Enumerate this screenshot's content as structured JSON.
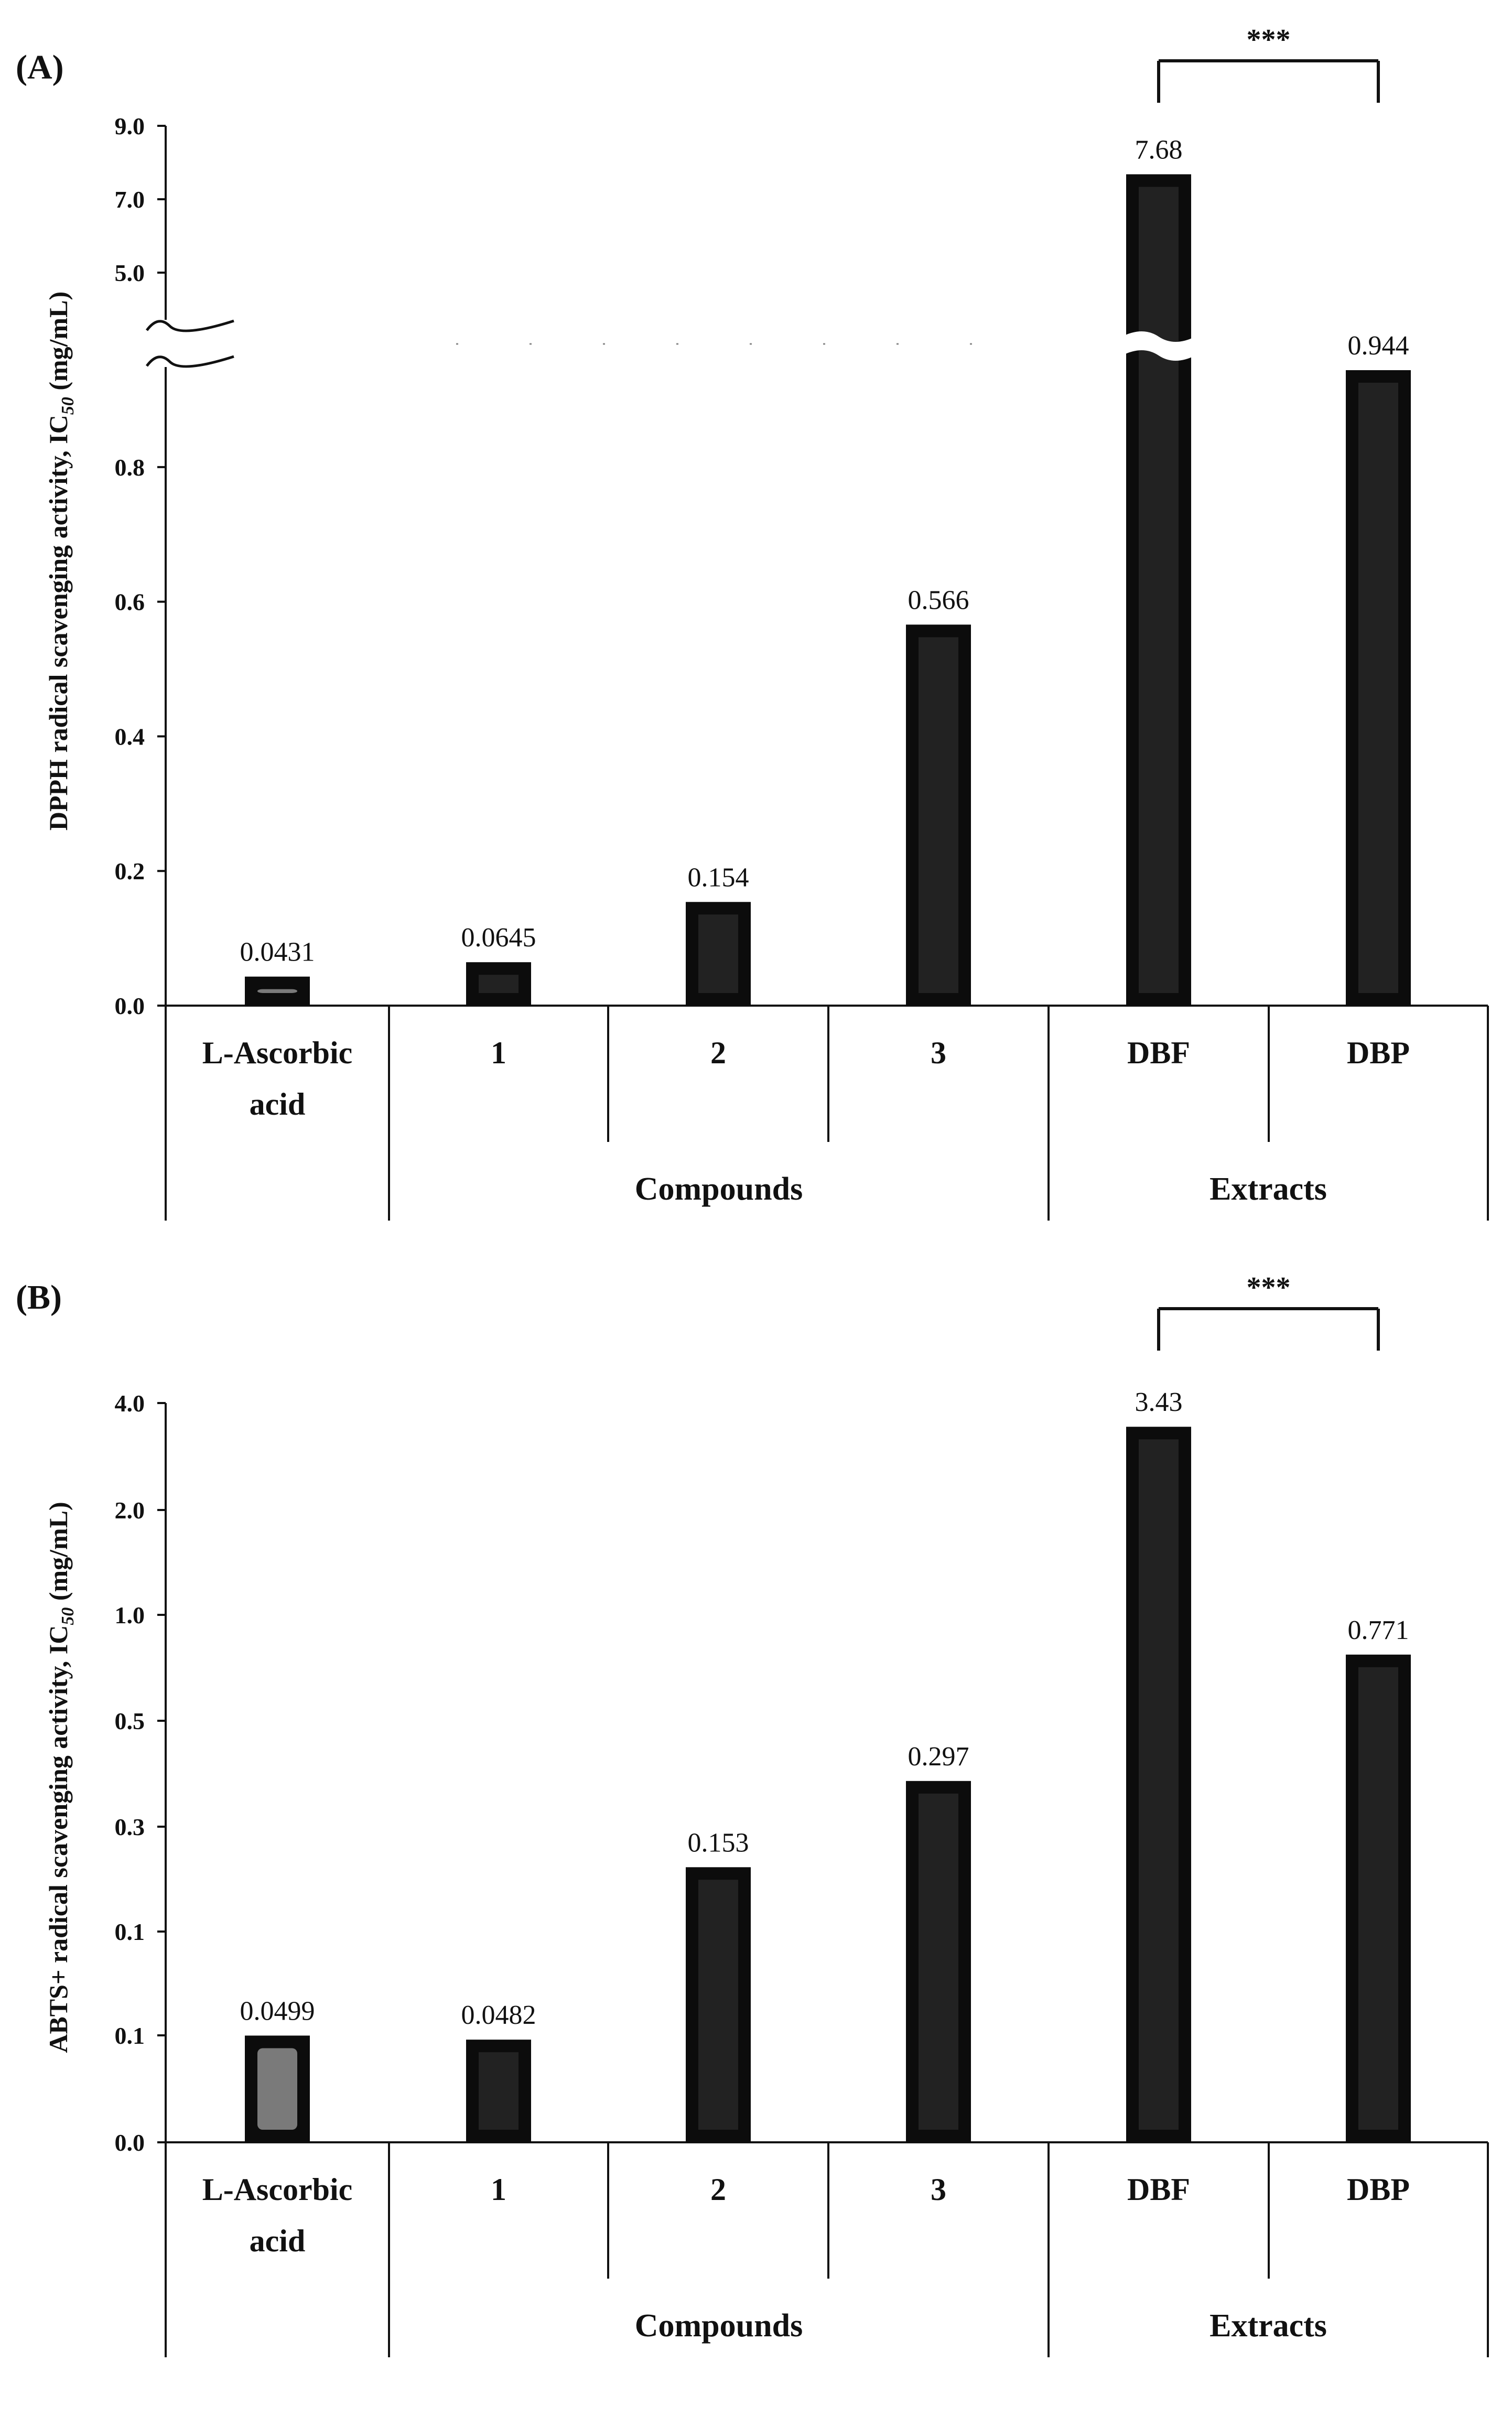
{
  "chart_data": [
    {
      "panel": "(A)",
      "type": "bar",
      "ylabel": "DPPH radical scavenging activity, IC",
      "ylabel_sub": "50",
      "ylabel_unit": "(mg/mL)",
      "axis_break": true,
      "ylim_lower": [
        0.0,
        0.944
      ],
      "ylim_upper": [
        5.0,
        9.0
      ],
      "y_ticks_lower": [
        "0.0",
        "0.2",
        "0.4",
        "0.6",
        "0.8"
      ],
      "y_ticks_upper": [
        "5.0",
        "7.0",
        "9.0"
      ],
      "categories": [
        "L-Ascorbic acid",
        "1",
        "2",
        "3",
        "DBF",
        "DBP"
      ],
      "category_lines": [
        [
          "L-Ascorbic",
          "acid"
        ],
        [
          "1"
        ],
        [
          "2"
        ],
        [
          "3"
        ],
        [
          "DBF"
        ],
        [
          "DBP"
        ]
      ],
      "values": [
        0.0431,
        0.0645,
        0.154,
        0.566,
        7.68,
        0.944
      ],
      "value_labels": [
        "0.0431",
        "0.0645",
        "0.154",
        "0.566",
        "7.68",
        "0.944"
      ],
      "bar_colors": [
        "#6b6b6b",
        "#1a1a1a",
        "#1a1a1a",
        "#1a1a1a",
        "#1a1a1a",
        "#1a1a1a"
      ],
      "groups": [
        {
          "label": "",
          "members": [
            "L-Ascorbic acid"
          ]
        },
        {
          "label": "Compounds",
          "members": [
            "1",
            "2",
            "3"
          ]
        },
        {
          "label": "Extracts",
          "members": [
            "DBF",
            "DBP"
          ]
        }
      ],
      "significance": {
        "between": [
          "DBF",
          "DBP"
        ],
        "label": "***"
      }
    },
    {
      "panel": "(B)",
      "type": "bar",
      "ylabel": "ABTS+ radical scavenging activity, IC",
      "ylabel_sub": "50",
      "ylabel_unit": "(mg/mL)",
      "y_scale": "log",
      "y_ticks": [
        "0.0",
        "0.1",
        "0.1",
        "0.3",
        "0.5",
        "1.0",
        "2.0",
        "4.0"
      ],
      "categories": [
        "L-Ascorbic acid",
        "1",
        "2",
        "3",
        "DBF",
        "DBP"
      ],
      "category_lines": [
        [
          "L-Ascorbic",
          "acid"
        ],
        [
          "1"
        ],
        [
          "2"
        ],
        [
          "3"
        ],
        [
          "DBF"
        ],
        [
          "DBP"
        ]
      ],
      "values": [
        0.0499,
        0.0482,
        0.153,
        0.297,
        3.43,
        0.771
      ],
      "value_labels": [
        "0.0499",
        "0.0482",
        "0.153",
        "0.297",
        "3.43",
        "0.771"
      ],
      "bar_colors": [
        "#6b6b6b",
        "#1a1a1a",
        "#1a1a1a",
        "#1a1a1a",
        "#1a1a1a",
        "#1a1a1a"
      ],
      "groups": [
        {
          "label": "",
          "members": [
            "L-Ascorbic acid"
          ]
        },
        {
          "label": "Compounds",
          "members": [
            "1",
            "2",
            "3"
          ]
        },
        {
          "label": "Extracts",
          "members": [
            "DBF",
            "DBP"
          ]
        }
      ],
      "significance": {
        "between": [
          "DBF",
          "DBP"
        ],
        "label": "***"
      }
    }
  ]
}
